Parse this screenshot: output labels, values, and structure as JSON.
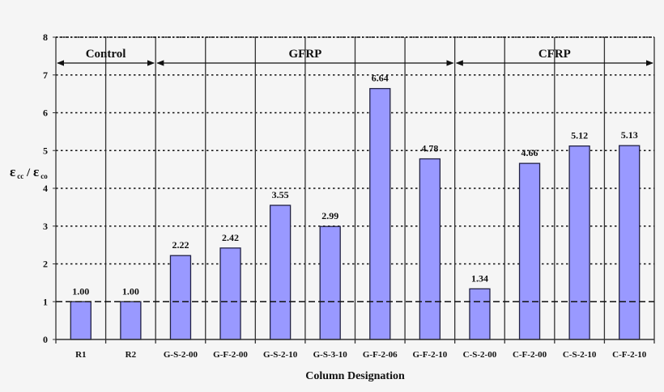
{
  "chart_data": {
    "type": "bar",
    "title": "",
    "xlabel": "Column Designation",
    "ylabel": "ε cc / ε co",
    "ylabel_parts": {
      "main1": "ε",
      "sub1": "cc",
      "sep": " / ",
      "main2": "ε",
      "sub2": "co"
    },
    "ylim": [
      0,
      8
    ],
    "yticks": [
      0,
      1,
      2,
      3,
      4,
      5,
      6,
      7,
      8
    ],
    "grid": "horizontal dotted; vertical solid column separators; y=1 reference dashed",
    "legend": null,
    "categories": [
      "R1",
      "R2",
      "G-S-2-00",
      "G-F-2-00",
      "G-S-2-10",
      "G-S-3-10",
      "G-F-2-06",
      "G-F-2-10",
      "C-S-2-00",
      "C-F-2-00",
      "C-S-2-10",
      "C-F-2-10"
    ],
    "values": [
      1.0,
      1.0,
      2.22,
      2.42,
      3.55,
      2.99,
      6.64,
      4.78,
      1.34,
      4.66,
      5.12,
      5.13
    ],
    "value_labels": [
      "1.00",
      "1.00",
      "2.22",
      "2.42",
      "3.55",
      "2.99",
      "6.64",
      "4.78",
      "1.34",
      "4.66",
      "5.12",
      "5.13"
    ],
    "groups": [
      {
        "label": "Control",
        "start_index": 0,
        "end_index": 1
      },
      {
        "label": "GFRP",
        "start_index": 2,
        "end_index": 7
      },
      {
        "label": "CFRP",
        "start_index": 8,
        "end_index": 11
      }
    ],
    "reference_line": {
      "y": 1,
      "style": "dashed"
    },
    "colors": {
      "bar_fill": "#9999ff",
      "bar_edge": "#222244",
      "grid": "#111111",
      "background": "#f5f5f5",
      "plot_background": "#f5f5f5"
    }
  }
}
